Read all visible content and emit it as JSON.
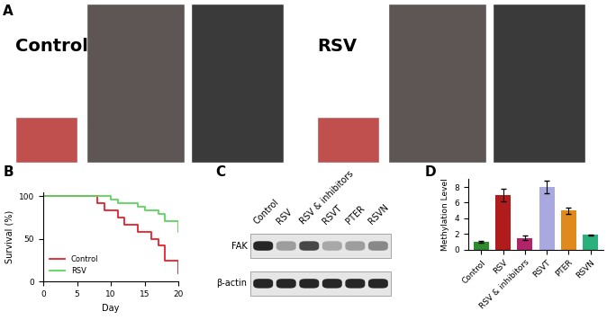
{
  "panels": {
    "A": {
      "panel_label": "A",
      "groups": [
        "Control",
        "RSV"
      ]
    },
    "C": {
      "panel_label": "C",
      "lanes": [
        "Control",
        "RSV",
        "RSV & inhibitors",
        "RSVT",
        "PTER",
        "RSVN"
      ],
      "rows": [
        {
          "name": "FAK",
          "intensities": [
            1.0,
            0.45,
            0.85,
            0.4,
            0.45,
            0.55
          ]
        },
        {
          "name": "β-actin",
          "intensities": [
            1.0,
            1.0,
            1.0,
            1.0,
            1.0,
            1.0
          ]
        }
      ]
    }
  },
  "chart_data": [
    {
      "panel_label": "B",
      "type": "line",
      "line_style": "steps",
      "x": [
        0,
        8,
        9,
        10,
        11,
        12,
        14,
        15,
        16,
        17,
        18,
        20
      ],
      "series": [
        {
          "name": "Control",
          "color": "#e8202a",
          "values": [
            100,
            92,
            83,
            83,
            75,
            67,
            58,
            58,
            50,
            42,
            25,
            10
          ]
        },
        {
          "name": "RSV",
          "color": "#5cd65c",
          "values": [
            100,
            100,
            100,
            96,
            92,
            92,
            88,
            83,
            83,
            79,
            71,
            58
          ]
        }
      ],
      "x_label": "Day",
      "y_label": "Survival (%)",
      "xlim": [
        0,
        20
      ],
      "xticks": [
        0,
        5,
        10,
        15,
        20
      ],
      "ylim": [
        0,
        105
      ],
      "yticks": [
        0,
        50,
        100
      ],
      "legend": "lower left",
      "grid": false
    },
    {
      "panel_label": "D",
      "type": "bar",
      "categories": [
        "Control",
        "RSV",
        "RSV & inhibitors",
        "RSVT",
        "PTER",
        "RSVN"
      ],
      "values": [
        1.0,
        7.0,
        1.5,
        8.0,
        5.0,
        1.9
      ],
      "errors": [
        0.1,
        0.8,
        0.3,
        0.8,
        0.4,
        0.05
      ],
      "colors": [
        "#2e8b2e",
        "#b01c1c",
        "#b0246a",
        "#a9a9e0",
        "#e08a1e",
        "#2ab07a"
      ],
      "y_label": "Methylation Level",
      "ylim": [
        0,
        9
      ],
      "yticks": [
        0,
        2,
        4,
        6,
        8
      ],
      "grid": false
    }
  ]
}
